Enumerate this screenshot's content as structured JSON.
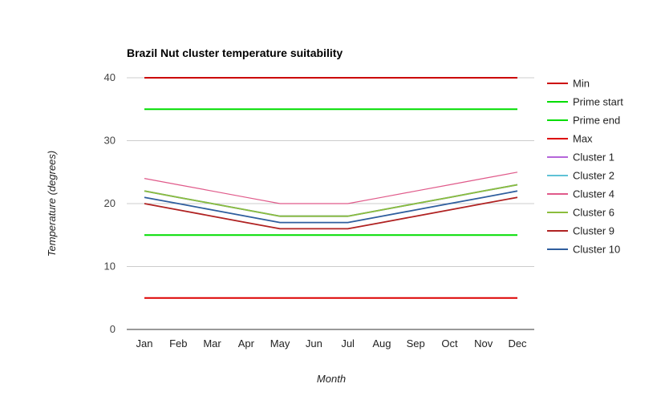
{
  "chart_data": {
    "type": "line",
    "title": "Brazil Nut cluster temperature suitability",
    "xlabel": "Month",
    "ylabel": "Temperature (degrees)",
    "categories": [
      "Jan",
      "Feb",
      "Mar",
      "Apr",
      "May",
      "Jun",
      "Jul",
      "Aug",
      "Sep",
      "Oct",
      "Nov",
      "Dec"
    ],
    "ylim": [
      0,
      40
    ],
    "yticks": [
      0,
      10,
      20,
      30,
      40
    ],
    "grid": true,
    "legend_position": "right",
    "series": [
      {
        "name": "Min",
        "color": "#cc0000",
        "values": [
          40,
          40,
          40,
          40,
          40,
          40,
          40,
          40,
          40,
          40,
          40,
          40
        ]
      },
      {
        "name": "Prime start",
        "color": "#00dd00",
        "values": [
          35,
          35,
          35,
          35,
          35,
          35,
          35,
          35,
          35,
          35,
          35,
          35
        ]
      },
      {
        "name": "Prime end",
        "color": "#00dd00",
        "values": [
          15,
          15,
          15,
          15,
          15,
          15,
          15,
          15,
          15,
          15,
          15,
          15
        ]
      },
      {
        "name": "Max",
        "color": "#dd0000",
        "values": [
          5,
          5,
          5,
          5,
          5,
          5,
          5,
          5,
          5,
          5,
          5,
          5
        ]
      },
      {
        "name": "Cluster 1",
        "color": "#b565d9",
        "values": [
          22,
          21,
          20,
          19,
          18,
          18,
          18,
          19,
          20,
          21,
          22,
          23
        ]
      },
      {
        "name": "Cluster 2",
        "color": "#5fc2d6",
        "values": [
          22,
          21,
          20,
          19,
          18,
          18,
          18,
          19,
          20,
          21,
          22,
          23
        ]
      },
      {
        "name": "Cluster 4",
        "color": "#e05a8a",
        "values": [
          24,
          23,
          22,
          21,
          20,
          20,
          20,
          21,
          22,
          23,
          24,
          25
        ]
      },
      {
        "name": "Cluster 6",
        "color": "#8bbd3c",
        "values": [
          22,
          21,
          20,
          19,
          18,
          18,
          18,
          19,
          20,
          21,
          22,
          23
        ]
      },
      {
        "name": "Cluster 9",
        "color": "#b02222",
        "values": [
          20,
          19,
          18,
          17,
          16,
          16,
          16,
          17,
          18,
          19,
          20,
          21
        ]
      },
      {
        "name": "Cluster 10",
        "color": "#2f5e9e",
        "values": [
          21,
          20,
          19,
          18,
          17,
          17,
          17,
          18,
          19,
          20,
          21,
          22
        ]
      }
    ]
  }
}
